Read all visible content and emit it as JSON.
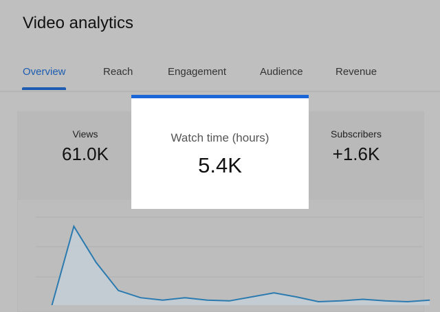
{
  "header": {
    "title": "Video analytics"
  },
  "tabs": [
    {
      "label": "Overview",
      "active": true
    },
    {
      "label": "Reach"
    },
    {
      "label": "Engagement"
    },
    {
      "label": "Audience"
    },
    {
      "label": "Revenue"
    }
  ],
  "metrics": [
    {
      "label": "Views",
      "value": "61.0K"
    },
    {
      "label": "Subscribers",
      "value": "+1.6K"
    }
  ],
  "highlight": {
    "label": "Watch time (hours)",
    "value": "5.4K"
  },
  "colors": {
    "accent": "#1a66d6",
    "line": "#2a7ab0"
  },
  "chart_data": {
    "type": "area",
    "series": [
      {
        "name": "Views",
        "values": [
          0,
          100,
          55,
          20,
          11,
          8,
          11,
          8,
          7,
          12,
          17,
          12,
          6,
          7,
          9,
          7,
          6,
          8
        ]
      }
    ],
    "ylim": [
      0,
      120
    ],
    "grid": true
  }
}
